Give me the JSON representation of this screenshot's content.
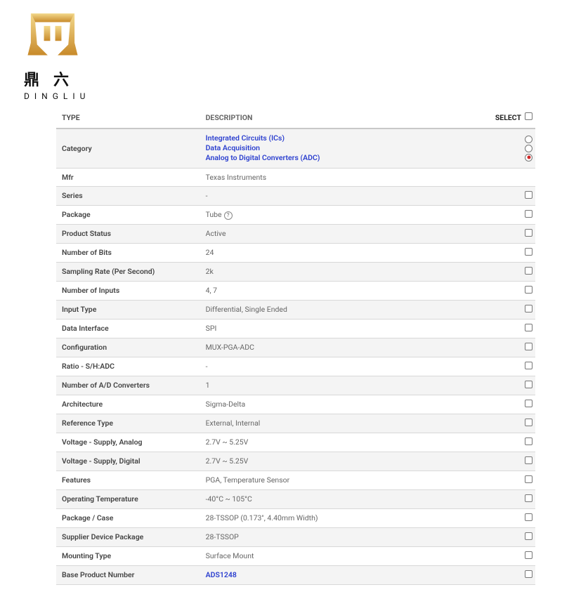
{
  "logo": {
    "cn": "鼎六",
    "en": "DINGLIU",
    "colors": {
      "gold": "#d9a63f",
      "gold_light": "#f3d98c",
      "black": "#111111"
    }
  },
  "table": {
    "headers": {
      "type": "TYPE",
      "description": "DESCRIPTION",
      "select": "SELECT"
    },
    "category_row": {
      "label": "Category",
      "links": [
        "Integrated Circuits (ICs)",
        "Data Acquisition",
        "Analog to Digital Converters (ADC)"
      ],
      "selected_index": 2
    },
    "rows": [
      {
        "type": "Mfr",
        "desc": "Texas Instruments",
        "select": "none"
      },
      {
        "type": "Series",
        "desc": "-",
        "select": "chk"
      },
      {
        "type": "Package",
        "desc": "Tube",
        "help": true,
        "select": "chk"
      },
      {
        "type": "Product Status",
        "desc": "Active",
        "select": "chk"
      },
      {
        "type": "Number of Bits",
        "desc": "24",
        "select": "chk"
      },
      {
        "type": "Sampling Rate (Per Second)",
        "desc": "2k",
        "select": "chk"
      },
      {
        "type": "Number of Inputs",
        "desc": "4, 7",
        "select": "chk"
      },
      {
        "type": "Input Type",
        "desc": "Differential, Single Ended",
        "select": "chk"
      },
      {
        "type": "Data Interface",
        "desc": "SPI",
        "select": "chk"
      },
      {
        "type": "Configuration",
        "desc": "MUX-PGA-ADC",
        "select": "chk"
      },
      {
        "type": "Ratio - S/H:ADC",
        "desc": "-",
        "select": "chk"
      },
      {
        "type": "Number of A/D Converters",
        "desc": "1",
        "select": "chk"
      },
      {
        "type": "Architecture",
        "desc": "Sigma-Delta",
        "select": "chk"
      },
      {
        "type": "Reference Type",
        "desc": "External, Internal",
        "select": "chk"
      },
      {
        "type": "Voltage - Supply, Analog",
        "desc": "2.7V ~ 5.25V",
        "select": "chk"
      },
      {
        "type": "Voltage - Supply, Digital",
        "desc": "2.7V ~ 5.25V",
        "select": "chk"
      },
      {
        "type": "Features",
        "desc": "PGA, Temperature Sensor",
        "select": "chk"
      },
      {
        "type": "Operating Temperature",
        "desc": "-40°C ~ 105°C",
        "select": "chk"
      },
      {
        "type": "Package / Case",
        "desc": "28-TSSOP (0.173\", 4.40mm Width)",
        "select": "chk"
      },
      {
        "type": "Supplier Device Package",
        "desc": "28-TSSOP",
        "select": "chk"
      },
      {
        "type": "Mounting Type",
        "desc": "Surface Mount",
        "select": "chk"
      },
      {
        "type": "Base Product Number",
        "desc": "ADS1248",
        "link": true,
        "select": "chk"
      }
    ]
  }
}
